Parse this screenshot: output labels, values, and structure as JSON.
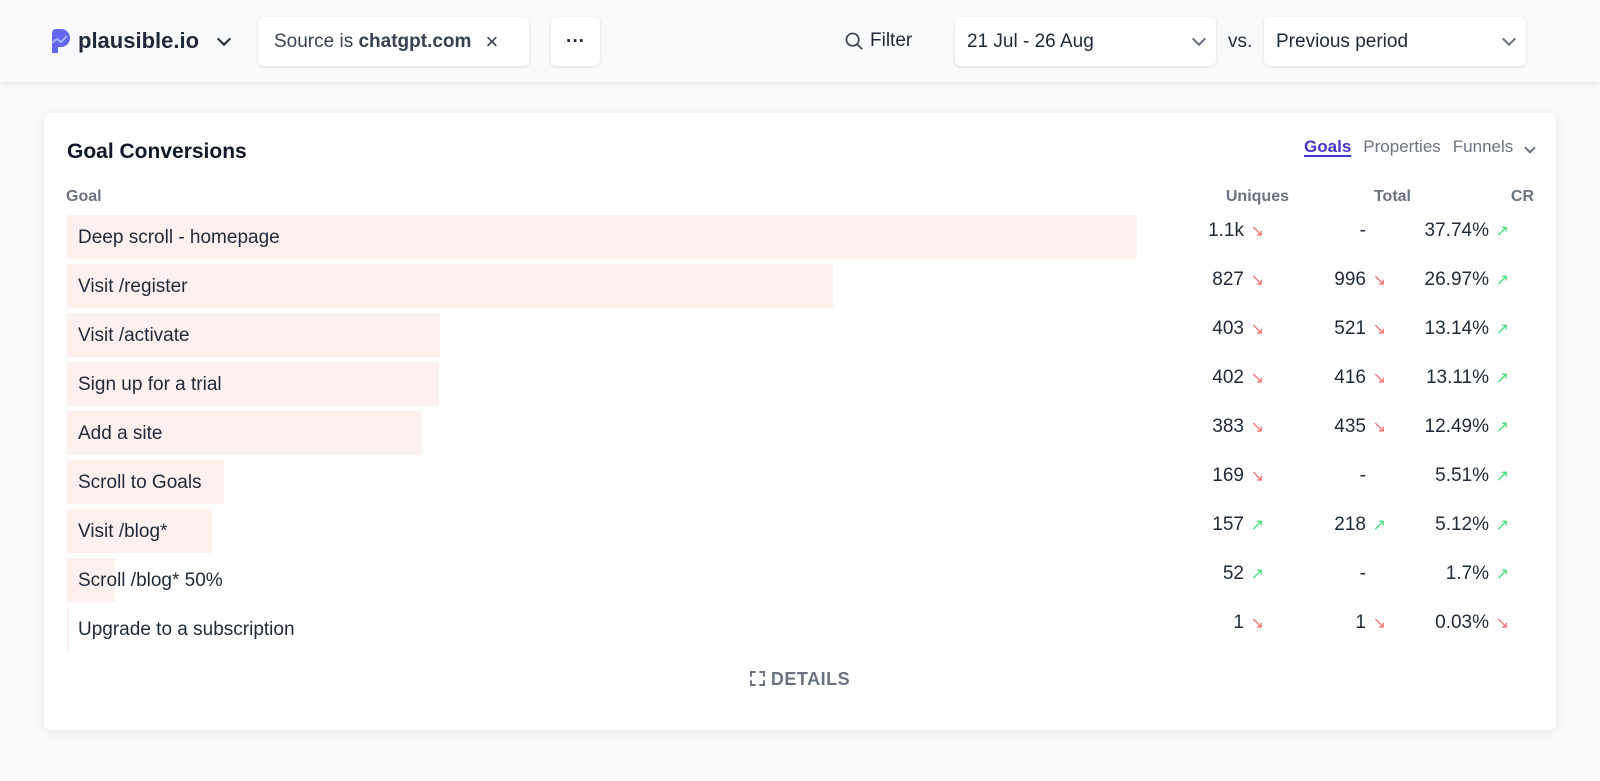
{
  "header": {
    "site": "plausible.io",
    "filter_prefix": "Source is",
    "filter_value": "chatgpt.com",
    "more": "···",
    "filter_button": "Filter",
    "date_range": "21 Jul - 26 Aug",
    "vs": "vs.",
    "comparison": "Previous period"
  },
  "card": {
    "title": "Goal Conversions",
    "tabs": [
      "Goals",
      "Properties",
      "Funnels"
    ],
    "active_tab": "Goals",
    "columns": [
      "Goal",
      "Uniques",
      "Total",
      "CR"
    ],
    "rows": [
      {
        "goal": "Deep scroll - homepage",
        "uniques": "1.1k",
        "uniques_value": 1155,
        "uniques_trend": "down",
        "total": "-",
        "total_trend": "",
        "cr": "37.74%",
        "cr_trend": "up"
      },
      {
        "goal": "Visit /register",
        "uniques": "827",
        "uniques_value": 827,
        "uniques_trend": "down",
        "total": "996",
        "total_trend": "down",
        "cr": "26.97%",
        "cr_trend": "up"
      },
      {
        "goal": "Visit /activate",
        "uniques": "403",
        "uniques_value": 403,
        "uniques_trend": "down",
        "total": "521",
        "total_trend": "down",
        "cr": "13.14%",
        "cr_trend": "up"
      },
      {
        "goal": "Sign up for a trial",
        "uniques": "402",
        "uniques_value": 402,
        "uniques_trend": "down",
        "total": "416",
        "total_trend": "down",
        "cr": "13.11%",
        "cr_trend": "up"
      },
      {
        "goal": "Add a site",
        "uniques": "383",
        "uniques_value": 383,
        "uniques_trend": "down",
        "total": "435",
        "total_trend": "down",
        "cr": "12.49%",
        "cr_trend": "up"
      },
      {
        "goal": "Scroll to Goals",
        "uniques": "169",
        "uniques_value": 169,
        "uniques_trend": "down",
        "total": "-",
        "total_trend": "",
        "cr": "5.51%",
        "cr_trend": "up"
      },
      {
        "goal": "Visit /blog*",
        "uniques": "157",
        "uniques_value": 157,
        "uniques_trend": "up",
        "total": "218",
        "total_trend": "up",
        "cr": "5.12%",
        "cr_trend": "up"
      },
      {
        "goal": "Scroll /blog* 50%",
        "uniques": "52",
        "uniques_value": 52,
        "uniques_trend": "up",
        "total": "-",
        "total_trend": "",
        "cr": "1.7%",
        "cr_trend": "up"
      },
      {
        "goal": "Upgrade to a subscription",
        "uniques": "1",
        "uniques_value": 1,
        "uniques_trend": "down",
        "total": "1",
        "total_trend": "down",
        "cr": "0.03%",
        "cr_trend": "down"
      }
    ],
    "details": "DETAILS"
  },
  "colors": {
    "accent": "#4338ca",
    "bar": "#fdf0ef",
    "down": "#f87171",
    "up": "#4ade80"
  }
}
